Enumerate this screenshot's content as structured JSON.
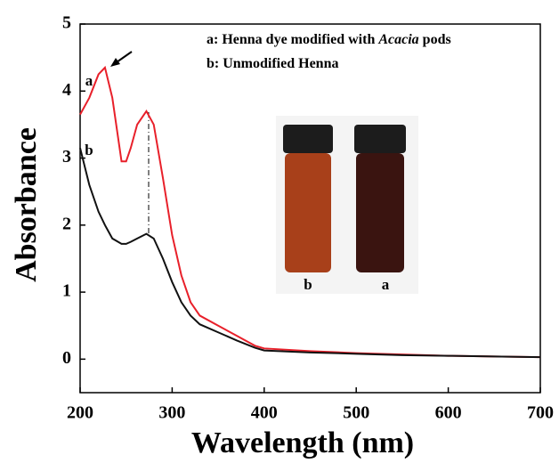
{
  "chart_data": {
    "type": "line",
    "x_label": "Wavelength (nm)",
    "y_label": "Absorbance",
    "x": [
      200,
      210,
      220,
      227,
      235,
      245,
      250,
      255,
      262,
      272,
      280,
      290,
      300,
      310,
      320,
      330,
      350,
      370,
      390,
      400,
      450,
      500,
      550,
      600,
      650,
      700
    ],
    "series": [
      {
        "name_parts": [
          {
            "text": "a: Henna dye modified with "
          },
          {
            "text": "Acacia",
            "italic": true
          },
          {
            "text": " pods"
          }
        ],
        "curve_label": "a",
        "color": "#e8202a",
        "values": [
          3.65,
          3.9,
          4.25,
          4.35,
          3.9,
          2.95,
          2.95,
          3.15,
          3.5,
          3.7,
          3.5,
          2.7,
          1.85,
          1.25,
          0.85,
          0.65,
          0.5,
          0.35,
          0.2,
          0.16,
          0.12,
          0.09,
          0.07,
          0.05,
          0.04,
          0.03
        ]
      },
      {
        "name_parts": [
          {
            "text": "b: Unmodified Henna"
          }
        ],
        "curve_label": "b",
        "color": "#111111",
        "values": [
          3.15,
          2.6,
          2.2,
          2.0,
          1.8,
          1.72,
          1.72,
          1.75,
          1.8,
          1.87,
          1.8,
          1.5,
          1.15,
          0.85,
          0.65,
          0.52,
          0.4,
          0.28,
          0.17,
          0.13,
          0.1,
          0.08,
          0.06,
          0.05,
          0.04,
          0.03
        ]
      }
    ],
    "inset_labels": [
      "b",
      "a"
    ],
    "xlim": [
      200,
      700
    ],
    "xticks": [
      200,
      300,
      400,
      500,
      600,
      700
    ],
    "ylim": [
      -0.5,
      5
    ],
    "yticks": [
      0,
      1,
      2,
      3,
      4,
      5
    ]
  }
}
